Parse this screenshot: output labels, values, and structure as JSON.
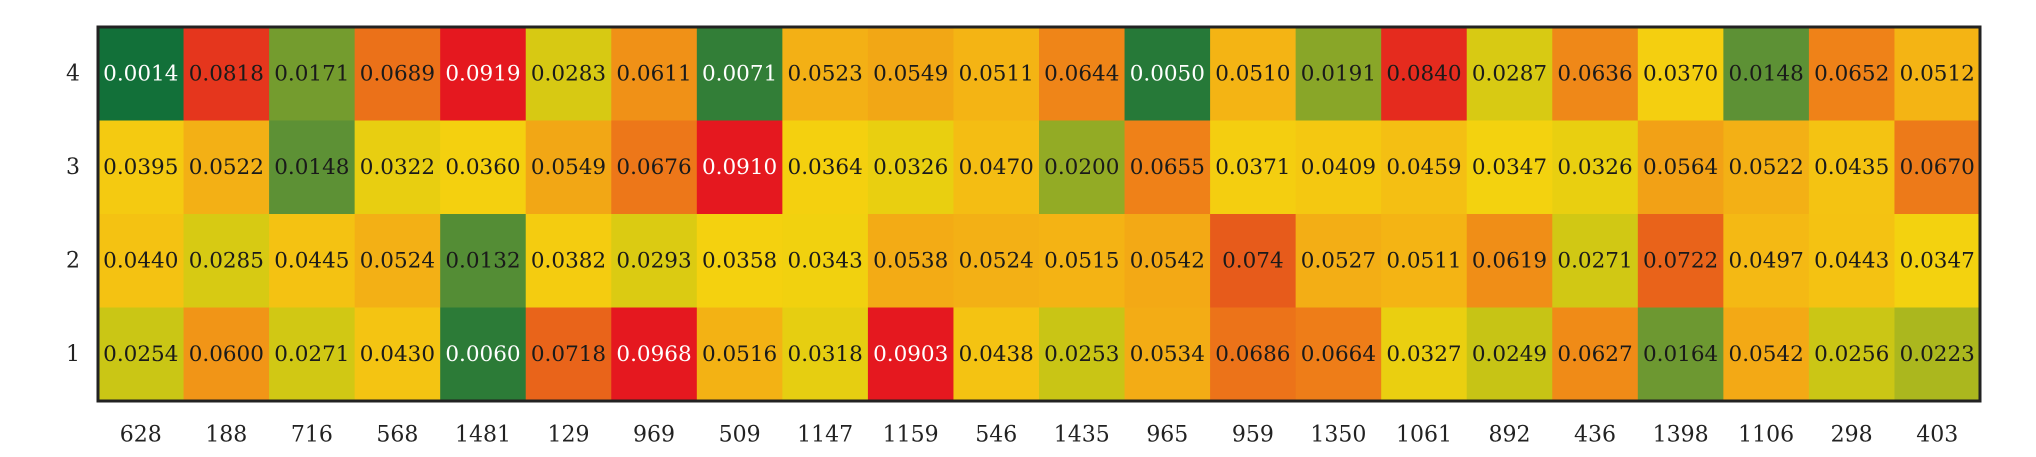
{
  "chart_data": {
    "type": "heatmap",
    "x_categories": [
      "628",
      "188",
      "716",
      "568",
      "1481",
      "129",
      "969",
      "509",
      "1147",
      "1159",
      "546",
      "1435",
      "965",
      "959",
      "1350",
      "1061",
      "892",
      "436",
      "1398",
      "1106",
      "298",
      "403"
    ],
    "y_categories": [
      "4",
      "3",
      "2",
      "1"
    ],
    "values": [
      [
        0.0014,
        0.0818,
        0.0171,
        0.0689,
        0.0919,
        0.0283,
        0.0611,
        0.0071,
        0.0523,
        0.0549,
        0.0511,
        0.0644,
        0.005,
        0.051,
        0.0191,
        0.084,
        0.0287,
        0.0636,
        0.037,
        0.0148,
        0.0652,
        0.0512
      ],
      [
        0.0395,
        0.0522,
        0.0148,
        0.0322,
        0.036,
        0.0549,
        0.0676,
        0.091,
        0.0364,
        0.0326,
        0.047,
        0.02,
        0.0655,
        0.0371,
        0.0409,
        0.0459,
        0.0347,
        0.0326,
        0.0564,
        0.0522,
        0.0435,
        0.067
      ],
      [
        0.044,
        0.0285,
        0.0445,
        0.0524,
        0.0132,
        0.0382,
        0.0293,
        0.0358,
        0.0343,
        0.0538,
        0.0524,
        0.0515,
        0.0542,
        0.074,
        0.0527,
        0.0511,
        0.0619,
        0.0271,
        0.0722,
        0.0497,
        0.0443,
        0.0347
      ],
      [
        0.0254,
        0.06,
        0.0271,
        0.043,
        0.006,
        0.0718,
        0.0968,
        0.0516,
        0.0318,
        0.0903,
        0.0438,
        0.0253,
        0.0534,
        0.0686,
        0.0664,
        0.0327,
        0.0249,
        0.0627,
        0.0164,
        0.0542,
        0.0256,
        0.0223
      ]
    ],
    "labels": [
      [
        "0.0014",
        "0.0818",
        "0.0171",
        "0.0689",
        "0.0919",
        "0.0283",
        "0.0611",
        "0.0071",
        "0.0523",
        "0.0549",
        "0.0511",
        "0.0644",
        "0.0050",
        "0.0510",
        "0.0191",
        "0.0840",
        "0.0287",
        "0.0636",
        "0.0370",
        "0.0148",
        "0.0652",
        "0.0512"
      ],
      [
        "0.0395",
        "0.0522",
        "0.0148",
        "0.0322",
        "0.0360",
        "0.0549",
        "0.0676",
        "0.0910",
        "0.0364",
        "0.0326",
        "0.0470",
        "0.0200",
        "0.0655",
        "0.0371",
        "0.0409",
        "0.0459",
        "0.0347",
        "0.0326",
        "0.0564",
        "0.0522",
        "0.0435",
        "0.0670"
      ],
      [
        "0.0440",
        "0.0285",
        "0.0445",
        "0.0524",
        "0.0132",
        "0.0382",
        "0.0293",
        "0.0358",
        "0.0343",
        "0.0538",
        "0.0524",
        "0.0515",
        "0.0542",
        "0.074",
        "0.0527",
        "0.0511",
        "0.0619",
        "0.0271",
        "0.0722",
        "0.0497",
        "0.0443",
        "0.0347"
      ],
      [
        "0.0254",
        "0.0600",
        "0.0271",
        "0.0430",
        "0.0060",
        "0.0718",
        "0.0968",
        "0.0516",
        "0.0318",
        "0.0903",
        "0.0438",
        "0.0253",
        "0.0534",
        "0.0686",
        "0.0664",
        "0.0327",
        "0.0249",
        "0.0627",
        "0.0164",
        "0.0542",
        "0.0256",
        "0.0223"
      ]
    ],
    "colorscale": {
      "min": 0,
      "max": 0.1,
      "stops": [
        [
          0.0,
          "#0a6d39"
        ],
        [
          0.15,
          "#5e9135"
        ],
        [
          0.25,
          "#c8c515"
        ],
        [
          0.35,
          "#f4d20f"
        ],
        [
          0.5,
          "#f4b814"
        ],
        [
          0.65,
          "#ef8318"
        ],
        [
          0.75,
          "#e6561b"
        ],
        [
          0.88,
          "#e5181f"
        ],
        [
          1.0,
          "#e5181f"
        ]
      ]
    },
    "dark_text_color": "#1a1a1a",
    "light_text_color": "#ffffff",
    "border_color": "#222222",
    "grid": false,
    "title": "",
    "xlabel": "",
    "ylabel": ""
  }
}
